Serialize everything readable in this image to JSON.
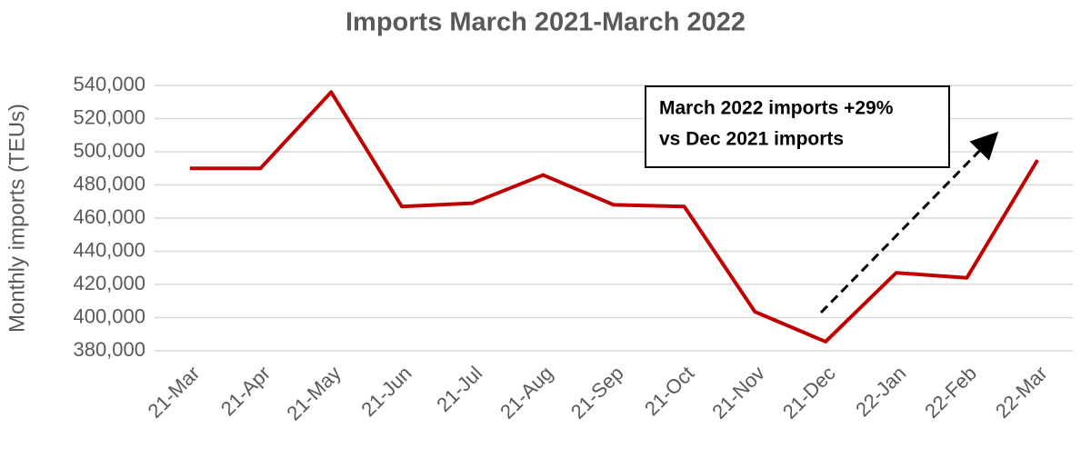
{
  "chart_data": {
    "type": "line",
    "title": "Imports March 2021-March 2022",
    "y_label": "Monthly imports (TEUs)",
    "categories": [
      "21-Mar",
      "21-Apr",
      "21-May",
      "21-Jun",
      "21-Jul",
      "21-Aug",
      "21-Sep",
      "21-Oct",
      "21-Nov",
      "21-Dec",
      "22-Jan",
      "22-Feb",
      "22-Mar"
    ],
    "series": [
      {
        "name": "Monthly imports",
        "color": "#c00000",
        "values": [
          490000,
          490000,
          536000,
          467000,
          469000,
          486000,
          468000,
          467000,
          403500,
          385500,
          427000,
          424000,
          495000
        ]
      }
    ],
    "ylim": [
      380000,
      540000
    ],
    "yticks": [
      {
        "value": 380000,
        "label": "380,000"
      },
      {
        "value": 400000,
        "label": "400,000"
      },
      {
        "value": 420000,
        "label": "420,000"
      },
      {
        "value": 440000,
        "label": "440,000"
      },
      {
        "value": 460000,
        "label": "460,000"
      },
      {
        "value": 480000,
        "label": "480,000"
      },
      {
        "value": 500000,
        "label": "500,000"
      },
      {
        "value": 520000,
        "label": "520,000"
      },
      {
        "value": 540000,
        "label": "540,000"
      }
    ],
    "grid": true,
    "annotation": [
      "March 2022 imports +29%",
      "vs Dec 2021 imports"
    ]
  }
}
